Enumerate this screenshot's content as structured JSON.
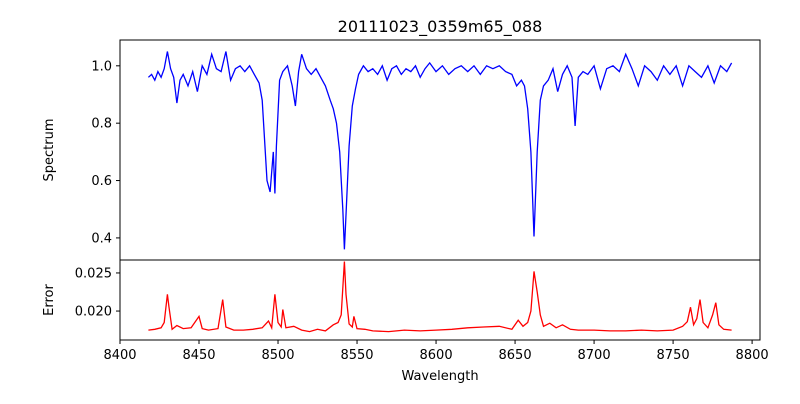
{
  "chart_data": [
    {
      "type": "line",
      "title": "20111023_0359m65_088",
      "xlabel": "",
      "ylabel": "Spectrum",
      "color": "#0000ff",
      "xlim": [
        8400,
        8805
      ],
      "ylim": [
        0.323,
        1.09
      ],
      "xticks": [],
      "yticks": [
        0.4,
        0.6,
        0.8,
        1.0
      ],
      "ytick_labels": [
        "0.4",
        "0.6",
        "0.8",
        "1.0"
      ],
      "x": [
        8418,
        8420,
        8422,
        8424,
        8426,
        8428,
        8430,
        8432,
        8434,
        8436,
        8438,
        8440,
        8443,
        8446,
        8449,
        8452,
        8455,
        8458,
        8461,
        8464,
        8467,
        8470,
        8473,
        8476,
        8479,
        8482,
        8485,
        8488,
        8490,
        8493,
        8495,
        8497,
        8498,
        8499,
        8501,
        8503,
        8506,
        8509,
        8511,
        8513,
        8515,
        8518,
        8521,
        8524,
        8527,
        8530,
        8533,
        8535,
        8537,
        8539,
        8541,
        8542,
        8543,
        8545,
        8547,
        8549,
        8551,
        8554,
        8557,
        8560,
        8563,
        8566,
        8569,
        8572,
        8575,
        8578,
        8581,
        8584,
        8587,
        8590,
        8593,
        8596,
        8600,
        8604,
        8608,
        8612,
        8616,
        8620,
        8624,
        8628,
        8632,
        8636,
        8640,
        8644,
        8648,
        8651,
        8654,
        8656,
        8658,
        8660,
        8662,
        8664,
        8666,
        8668,
        8671,
        8674,
        8677,
        8680,
        8683,
        8686,
        8688,
        8690,
        8693,
        8696,
        8700,
        8704,
        8708,
        8712,
        8716,
        8720,
        8724,
        8728,
        8732,
        8736,
        8740,
        8744,
        8748,
        8752,
        8756,
        8760,
        8764,
        8768,
        8772,
        8776,
        8780,
        8784,
        8787
      ],
      "y": [
        0.96,
        0.97,
        0.95,
        0.98,
        0.96,
        0.99,
        1.05,
        0.99,
        0.96,
        0.87,
        0.95,
        0.97,
        0.93,
        0.98,
        0.91,
        1.0,
        0.97,
        1.04,
        0.99,
        0.98,
        1.05,
        0.95,
        0.99,
        1.0,
        0.98,
        1.0,
        0.97,
        0.94,
        0.88,
        0.6,
        0.56,
        0.7,
        0.555,
        0.72,
        0.95,
        0.98,
        1.0,
        0.93,
        0.86,
        0.98,
        1.04,
        0.99,
        0.97,
        0.99,
        0.96,
        0.93,
        0.88,
        0.85,
        0.8,
        0.7,
        0.5,
        0.36,
        0.48,
        0.72,
        0.86,
        0.92,
        0.97,
        1.0,
        0.98,
        0.99,
        0.97,
        1.0,
        0.95,
        0.99,
        1.0,
        0.97,
        0.99,
        0.98,
        1.0,
        0.96,
        0.99,
        1.01,
        0.98,
        1.0,
        0.97,
        0.99,
        1.0,
        0.98,
        1.0,
        0.97,
        1.0,
        0.99,
        1.0,
        0.98,
        0.97,
        0.93,
        0.95,
        0.93,
        0.85,
        0.7,
        0.405,
        0.7,
        0.88,
        0.93,
        0.95,
        0.99,
        0.91,
        0.97,
        1.0,
        0.96,
        0.79,
        0.96,
        0.98,
        0.97,
        1.0,
        0.92,
        0.99,
        1.0,
        0.98,
        1.04,
        0.99,
        0.93,
        1.0,
        0.98,
        0.95,
        1.0,
        0.97,
        1.0,
        0.93,
        1.0,
        0.98,
        0.96,
        1.0,
        0.94,
        1.0,
        0.98,
        1.01
      ]
    },
    {
      "type": "line",
      "title": "",
      "xlabel": "Wavelength",
      "ylabel": "Error",
      "color": "#ff0000",
      "xlim": [
        8400,
        8805
      ],
      "ylim": [
        0.0162,
        0.0267
      ],
      "xticks": [
        8400,
        8450,
        8500,
        8550,
        8600,
        8650,
        8700,
        8750,
        8800
      ],
      "xtick_labels": [
        "8400",
        "8450",
        "8500",
        "8550",
        "8600",
        "8650",
        "8700",
        "8750",
        "8800"
      ],
      "yticks": [
        0.02,
        0.025
      ],
      "ytick_labels": [
        "0.020",
        "0.025"
      ],
      "x": [
        8418,
        8422,
        8426,
        8428,
        8430,
        8431,
        8433,
        8436,
        8440,
        8445,
        8450,
        8452,
        8456,
        8462,
        8465,
        8467,
        8472,
        8478,
        8484,
        8490,
        8494,
        8496,
        8498,
        8500,
        8502,
        8503,
        8505,
        8510,
        8515,
        8520,
        8525,
        8530,
        8535,
        8538,
        8540,
        8542,
        8543,
        8545,
        8547,
        8548,
        8550,
        8555,
        8560,
        8570,
        8580,
        8590,
        8600,
        8610,
        8620,
        8630,
        8640,
        8648,
        8652,
        8655,
        8658,
        8660,
        8662,
        8664,
        8666,
        8668,
        8672,
        8676,
        8680,
        8685,
        8690,
        8700,
        8710,
        8720,
        8730,
        8740,
        8750,
        8756,
        8759,
        8761,
        8763,
        8765,
        8767,
        8769,
        8772,
        8775,
        8777,
        8779,
        8782,
        8787
      ],
      "y": [
        0.0175,
        0.0176,
        0.0178,
        0.0185,
        0.0222,
        0.0205,
        0.0176,
        0.0181,
        0.0177,
        0.0178,
        0.0193,
        0.0177,
        0.0175,
        0.0177,
        0.0215,
        0.0179,
        0.0175,
        0.0175,
        0.0176,
        0.0178,
        0.0187,
        0.0178,
        0.0222,
        0.0185,
        0.0179,
        0.0202,
        0.0178,
        0.018,
        0.0175,
        0.0173,
        0.0176,
        0.0174,
        0.0182,
        0.0185,
        0.0195,
        0.0265,
        0.0222,
        0.0183,
        0.0179,
        0.0193,
        0.0177,
        0.0176,
        0.0174,
        0.0173,
        0.0175,
        0.0174,
        0.0175,
        0.0176,
        0.0178,
        0.0179,
        0.018,
        0.0176,
        0.0188,
        0.018,
        0.0185,
        0.02,
        0.0252,
        0.0225,
        0.0195,
        0.018,
        0.0184,
        0.0178,
        0.0182,
        0.0176,
        0.0175,
        0.0175,
        0.0174,
        0.0174,
        0.0175,
        0.0174,
        0.0175,
        0.018,
        0.0186,
        0.0205,
        0.0182,
        0.019,
        0.0215,
        0.0185,
        0.0178,
        0.0195,
        0.0211,
        0.0182,
        0.0176,
        0.0175
      ]
    }
  ]
}
